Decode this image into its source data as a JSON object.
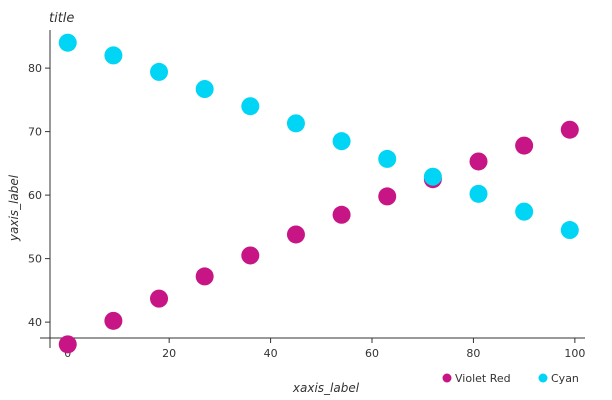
{
  "chart_data": {
    "type": "scatter",
    "title": "title",
    "xlabel": "xaxis_label",
    "ylabel": "yaxis_label",
    "xlim": [
      -3.5,
      102
    ],
    "ylim": [
      37.5,
      86
    ],
    "x_ticks": [
      0,
      20,
      40,
      60,
      80,
      100
    ],
    "y_ticks": [
      40,
      50,
      60,
      70,
      80
    ],
    "grid": false,
    "legend_position": "bottom-right",
    "series": [
      {
        "name": "Violet Red",
        "color": "#C71585",
        "points": [
          {
            "x": 0,
            "y": 36.5
          },
          {
            "x": 9,
            "y": 40.2
          },
          {
            "x": 18,
            "y": 43.7
          },
          {
            "x": 27,
            "y": 47.2
          },
          {
            "x": 36,
            "y": 50.5
          },
          {
            "x": 45,
            "y": 53.8
          },
          {
            "x": 54,
            "y": 56.9
          },
          {
            "x": 63,
            "y": 59.8
          },
          {
            "x": 72,
            "y": 62.5
          },
          {
            "x": 81,
            "y": 65.3
          },
          {
            "x": 90,
            "y": 67.8
          },
          {
            "x": 99,
            "y": 70.3
          }
        ]
      },
      {
        "name": "Cyan",
        "color": "#00D5F5",
        "points": [
          {
            "x": 0,
            "y": 84
          },
          {
            "x": 9,
            "y": 82
          },
          {
            "x": 18,
            "y": 79.4
          },
          {
            "x": 27,
            "y": 76.7
          },
          {
            "x": 36,
            "y": 74
          },
          {
            "x": 45,
            "y": 71.3
          },
          {
            "x": 54,
            "y": 68.5
          },
          {
            "x": 63,
            "y": 65.7
          },
          {
            "x": 72,
            "y": 62.9
          },
          {
            "x": 81,
            "y": 60.2
          },
          {
            "x": 90,
            "y": 57.4
          },
          {
            "x": 99,
            "y": 54.5
          }
        ]
      }
    ]
  }
}
